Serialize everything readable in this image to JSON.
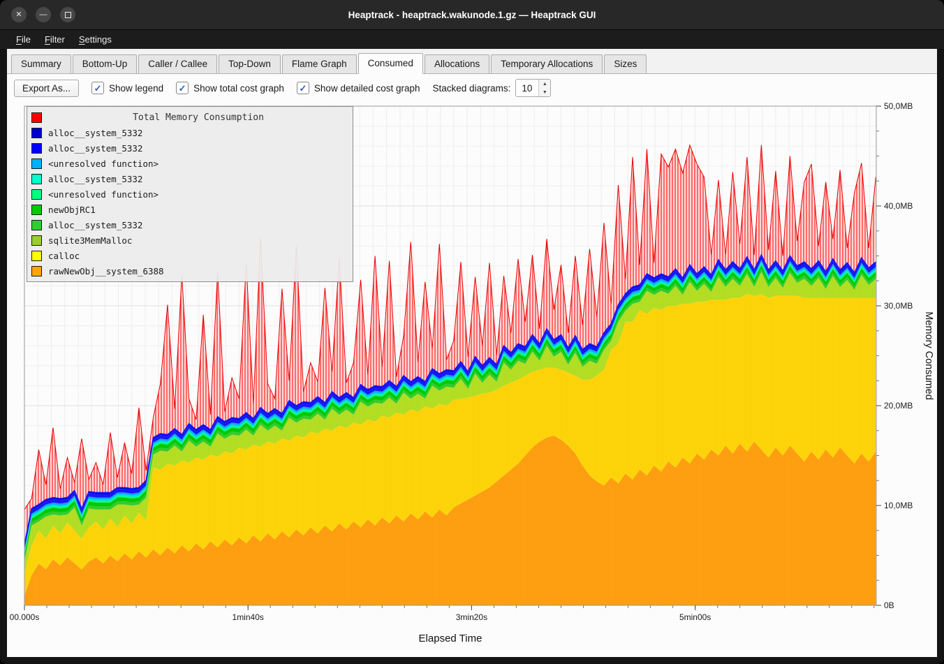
{
  "window": {
    "title": "Heaptrack - heaptrack.wakunode.1.gz — Heaptrack GUI"
  },
  "menu": {
    "items": [
      {
        "label": "File",
        "accel": 0
      },
      {
        "label": "Filter",
        "accel": 0
      },
      {
        "label": "Settings",
        "accel": 0
      }
    ]
  },
  "tabs": {
    "active_index": 5,
    "items": [
      "Summary",
      "Bottom-Up",
      "Caller / Callee",
      "Top-Down",
      "Flame Graph",
      "Consumed",
      "Allocations",
      "Temporary Allocations",
      "Sizes"
    ]
  },
  "toolbar": {
    "export_label": "Export As...",
    "checkboxes": [
      {
        "label": "Show legend",
        "checked": true
      },
      {
        "label": "Show total cost graph",
        "checked": true
      },
      {
        "label": "Show detailed cost graph",
        "checked": true
      }
    ],
    "stacked_label": "Stacked diagrams:",
    "stacked_value": "10"
  },
  "legend": {
    "title": "Total Memory Consumption",
    "items": [
      {
        "label": "",
        "color": "#ff0000"
      },
      {
        "label": "alloc__system_5332",
        "color": "#0000cd"
      },
      {
        "label": "alloc__system_5332",
        "color": "#0000ff"
      },
      {
        "label": "<unresolved function>",
        "color": "#00b0ff"
      },
      {
        "label": "alloc__system_5332",
        "color": "#00ffcc"
      },
      {
        "label": "<unresolved function>",
        "color": "#00ff7f"
      },
      {
        "label": "newObjRC1",
        "color": "#00cc00"
      },
      {
        "label": "alloc__system_5332",
        "color": "#32cd32"
      },
      {
        "label": "sqlite3MemMalloc",
        "color": "#9acd32"
      },
      {
        "label": "calloc",
        "color": "#ffff00"
      },
      {
        "label": "rawNewObj__system_6388",
        "color": "#ffa500"
      }
    ]
  },
  "chart_data": {
    "type": "area",
    "title": "Total Memory Consumption",
    "xlabel": "Elapsed Time",
    "ylabel": "Memory Consumed",
    "x_max_seconds": 381,
    "y_max_mb": 50,
    "sample_step_seconds": 3.2,
    "series_length": 120,
    "x_ticks": [
      {
        "label": "00.000s",
        "seconds": 0
      },
      {
        "label": "1min40s",
        "seconds": 100
      },
      {
        "label": "3min20s",
        "seconds": 200
      },
      {
        "label": "5min00s",
        "seconds": 300
      }
    ],
    "y_ticks": [
      {
        "label": "0B",
        "mb": 0
      },
      {
        "label": "10,0MB",
        "mb": 10
      },
      {
        "label": "20,0MB",
        "mb": 20
      },
      {
        "label": "30,0MB",
        "mb": 30
      },
      {
        "label": "40,0MB",
        "mb": 40
      },
      {
        "label": "50,0MB",
        "mb": 50
      }
    ],
    "series": [
      {
        "name": "rawNewObj__system_6388",
        "color": "#ffa010",
        "values_mb": [
          1.0,
          3.0,
          4.2,
          3.6,
          4.6,
          4.0,
          4.8,
          4.2,
          3.6,
          4.4,
          4.8,
          4.2,
          5.0,
          4.4,
          5.2,
          4.6,
          5.4,
          4.8,
          5.6,
          5.0,
          5.8,
          5.2,
          6.0,
          5.4,
          6.2,
          5.6,
          6.4,
          5.8,
          6.6,
          6.0,
          6.8,
          6.2,
          7.0,
          6.4,
          7.2,
          6.6,
          7.4,
          6.8,
          7.6,
          7.0,
          7.8,
          7.2,
          8.0,
          7.4,
          8.2,
          7.6,
          8.4,
          7.8,
          8.6,
          8.0,
          8.8,
          8.2,
          9.0,
          8.4,
          9.2,
          8.6,
          9.4,
          8.8,
          9.6,
          9.0,
          9.8,
          10.2,
          10.6,
          11.0,
          11.4,
          11.8,
          12.4,
          13.0,
          13.6,
          14.2,
          15.0,
          15.8,
          16.4,
          16.8,
          17.0,
          16.6,
          16.0,
          15.2,
          14.0,
          13.0,
          12.4,
          12.0,
          12.8,
          12.2,
          13.2,
          12.6,
          13.6,
          13.0,
          14.0,
          13.4,
          14.4,
          13.8,
          14.8,
          14.2,
          15.2,
          14.6,
          15.6,
          15.0,
          16.0,
          15.2,
          16.2,
          15.4,
          16.4,
          15.6,
          14.8,
          15.8,
          15.0,
          16.0,
          15.2,
          14.4,
          15.4,
          14.6,
          15.6,
          14.8,
          15.8,
          15.0,
          14.2,
          15.2,
          14.4,
          15.4
        ]
      },
      {
        "name": "calloc",
        "color": "#ffd60a",
        "values_mb": [
          2.2,
          3.0,
          3.3,
          3.1,
          3.4,
          3.2,
          3.5,
          3.3,
          3.1,
          3.4,
          3.6,
          3.4,
          3.7,
          3.5,
          3.8,
          3.6,
          3.9,
          3.7,
          8.2,
          8.6,
          8.4,
          8.8,
          8.5,
          8.9,
          8.6,
          9.0,
          8.7,
          9.1,
          8.8,
          9.2,
          9.0,
          9.4,
          9.1,
          9.5,
          9.2,
          9.6,
          9.3,
          9.7,
          9.4,
          9.8,
          9.6,
          10.0,
          9.7,
          10.1,
          9.8,
          10.2,
          9.9,
          10.3,
          10.0,
          10.4,
          10.2,
          10.6,
          10.3,
          10.7,
          10.4,
          10.8,
          10.5,
          10.9,
          10.6,
          11.0,
          10.8,
          10.5,
          10.2,
          10.0,
          9.8,
          9.5,
          9.2,
          9.0,
          8.7,
          8.4,
          8.0,
          7.6,
          7.2,
          7.0,
          6.8,
          7.0,
          7.3,
          7.8,
          8.6,
          9.6,
          10.6,
          11.6,
          12.8,
          14.0,
          15.2,
          15.8,
          16.0,
          16.2,
          15.8,
          16.2,
          15.6,
          16.2,
          15.4,
          16.0,
          15.2,
          15.8,
          15.0,
          15.6,
          14.6,
          15.6,
          14.6,
          15.8,
          14.6,
          15.6,
          16.0,
          15.2,
          16.0,
          15.0,
          15.8,
          16.4,
          15.4,
          16.2,
          15.2,
          16.0,
          15.0,
          15.8,
          16.6,
          15.6,
          16.4,
          15.4
        ]
      },
      {
        "name": "sqlite3MemMalloc",
        "color": "#b4e024",
        "values_mb": [
          1.2,
          2.0,
          0.9,
          2.2,
          1.1,
          1.8,
          0.8,
          2.3,
          1.3,
          1.9,
          1.2,
          2.0,
          0.9,
          2.2,
          1.1,
          1.8,
          0.8,
          2.3,
          1.3,
          1.9,
          1.2,
          2.0,
          0.9,
          2.2,
          1.1,
          1.8,
          0.8,
          2.3,
          1.3,
          1.9,
          1.2,
          2.0,
          0.9,
          2.2,
          1.1,
          1.8,
          0.8,
          2.3,
          1.3,
          1.9,
          1.2,
          2.0,
          0.9,
          2.2,
          1.1,
          1.8,
          0.8,
          2.3,
          1.3,
          1.9,
          1.2,
          2.0,
          0.9,
          2.2,
          1.1,
          1.8,
          0.8,
          2.3,
          1.3,
          1.9,
          1.2,
          2.0,
          0.9,
          2.2,
          1.1,
          1.8,
          0.8,
          2.3,
          1.3,
          1.9,
          1.2,
          2.0,
          0.9,
          2.2,
          1.1,
          1.8,
          0.8,
          2.3,
          1.3,
          1.9,
          1.2,
          2.0,
          0.9,
          2.2,
          1.1,
          1.8,
          0.8,
          2.3,
          1.3,
          1.9,
          1.2,
          2.0,
          0.9,
          2.2,
          1.1,
          1.8,
          0.8,
          2.3,
          1.3,
          1.9,
          1.2,
          2.0,
          0.9,
          2.2,
          1.1,
          1.8,
          0.8,
          2.3,
          1.3,
          1.9,
          1.2,
          2.0,
          0.9,
          2.2,
          1.1,
          1.8,
          0.8,
          2.3,
          1.3,
          1.9
        ]
      },
      {
        "name": "alloc__system_5332",
        "color": "#32cd32",
        "thickness_mb": 0.3
      },
      {
        "name": "newObjRC1",
        "color": "#00cc00",
        "thickness_mb": 0.4
      },
      {
        "name": "<unresolved function>",
        "color": "#00ff7f",
        "thickness_mb": 0.15
      },
      {
        "name": "alloc__system_5332",
        "color": "#00e5cc",
        "thickness_mb": 0.15
      },
      {
        "name": "<unresolved function>",
        "color": "#00b0ff",
        "thickness_mb": 0.2
      },
      {
        "name": "alloc__system_5332",
        "color": "#1616ff",
        "thickness_mb": 0.35
      },
      {
        "name": "alloc__system_5332",
        "color": "#0000cd",
        "thickness_mb": 0.15
      }
    ],
    "total_series": {
      "name": "Total Memory Consumption",
      "color": "#ff0000",
      "extra_above_stack_mb": [
        3.5,
        1.0,
        5.5,
        1.5,
        7.0,
        1.0,
        4.0,
        0.8,
        7.0,
        1.2,
        3.0,
        0.8,
        6.0,
        1.0,
        4.5,
        1.5,
        8.0,
        1.0,
        2.0,
        5.0,
        13.0,
        2.0,
        16.0,
        2.5,
        1.0,
        11.0,
        1.5,
        14.5,
        1.0,
        4.0,
        2.0,
        15.0,
        1.5,
        17.0,
        3.0,
        1.0,
        12.5,
        2.0,
        16.0,
        1.0,
        4.0,
        1.5,
        11.5,
        2.0,
        14.0,
        1.0,
        3.5,
        10.5,
        1.5,
        13.0,
        2.0,
        12.0,
        1.0,
        4.0,
        14.0,
        1.5,
        10.0,
        2.0,
        13.0,
        1.0,
        3.0,
        10.0,
        1.5,
        8.0,
        2.0,
        9.5,
        1.0,
        7.0,
        2.0,
        8.5,
        2.5,
        8.0,
        1.5,
        9.0,
        3.0,
        7.0,
        1.5,
        8.0,
        2.5,
        9.5,
        3.0,
        11.0,
        2.0,
        12.0,
        1.5,
        13.0,
        2.0,
        12.5,
        1.5,
        12.0,
        11.0,
        12.0,
        10.5,
        12.0,
        11.0,
        9.0,
        2.0,
        8.0,
        1.5,
        9.0,
        2.5,
        10.0,
        1.5,
        11.0,
        2.0,
        9.0,
        1.5,
        10.0,
        2.5,
        8.0,
        10.5,
        1.5,
        9.0,
        2.0,
        10.0,
        1.5,
        8.0,
        9.5,
        2.0,
        8.5
      ]
    }
  }
}
